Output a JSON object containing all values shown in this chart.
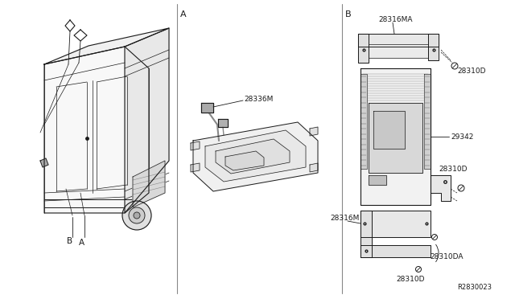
{
  "background_color": "#ffffff",
  "line_color": "#1a1a1a",
  "divider_color": "#aaaaaa",
  "label_A": "A",
  "label_B": "B",
  "part_28336M": "28336M",
  "part_28316MA": "28316MA",
  "part_28310D_1": "28310D",
  "part_29342": "29342",
  "part_28310D_2": "28310D",
  "part_28316M": "28316M",
  "part_28310DA": "28310DA",
  "part_28310D_3": "28310D",
  "ref_code": "R2830023",
  "fig_width": 6.4,
  "fig_height": 3.72,
  "dpi": 100
}
